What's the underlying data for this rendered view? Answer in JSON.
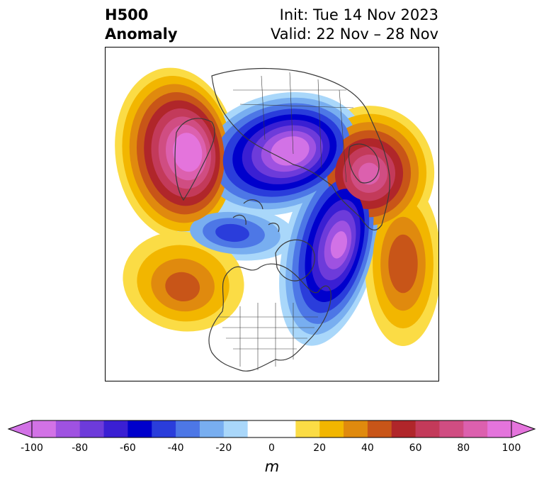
{
  "title": {
    "left_line1": "H500",
    "left_line2": "Anomaly",
    "init": "Init: Tue 14 Nov 2023",
    "valid": "Valid: 22 Nov – 28 Nov"
  },
  "colorbar": {
    "unit": "m",
    "min": -100,
    "max": 100,
    "step": 10,
    "extend": "both",
    "ticks": [
      "-100",
      "-80",
      "-60",
      "-40",
      "-20",
      "0",
      "20",
      "40",
      "60",
      "80",
      "100"
    ],
    "colors": [
      "#d272e6",
      "#9f52e1",
      "#6d3bda",
      "#3a1fd3",
      "#0000cc",
      "#2a3ddb",
      "#4d77e6",
      "#78aef0",
      "#a9d7fa",
      "#ffffff",
      "#ffffff",
      "#fbdc45",
      "#f2b600",
      "#e08a0e",
      "#c85518",
      "#b0262a",
      "#c33a5a",
      "#d04d82",
      "#dc60ae",
      "#e474dc"
    ]
  },
  "map": {
    "projection": "north-polar-stereographic",
    "anomaly_centers": [
      {
        "name": "western-north-america-ridge",
        "peak": 100
      },
      {
        "name": "scandinavia-ridge",
        "peak": 80
      },
      {
        "name": "siberia-trough",
        "peak": -100
      },
      {
        "name": "eastern-canada-trough",
        "peak": -90
      },
      {
        "name": "north-pacific-trough",
        "peak": -40
      },
      {
        "name": "east-asia-ridge",
        "peak": 40
      },
      {
        "name": "north-atlantic-ridge",
        "peak": 45
      }
    ]
  }
}
